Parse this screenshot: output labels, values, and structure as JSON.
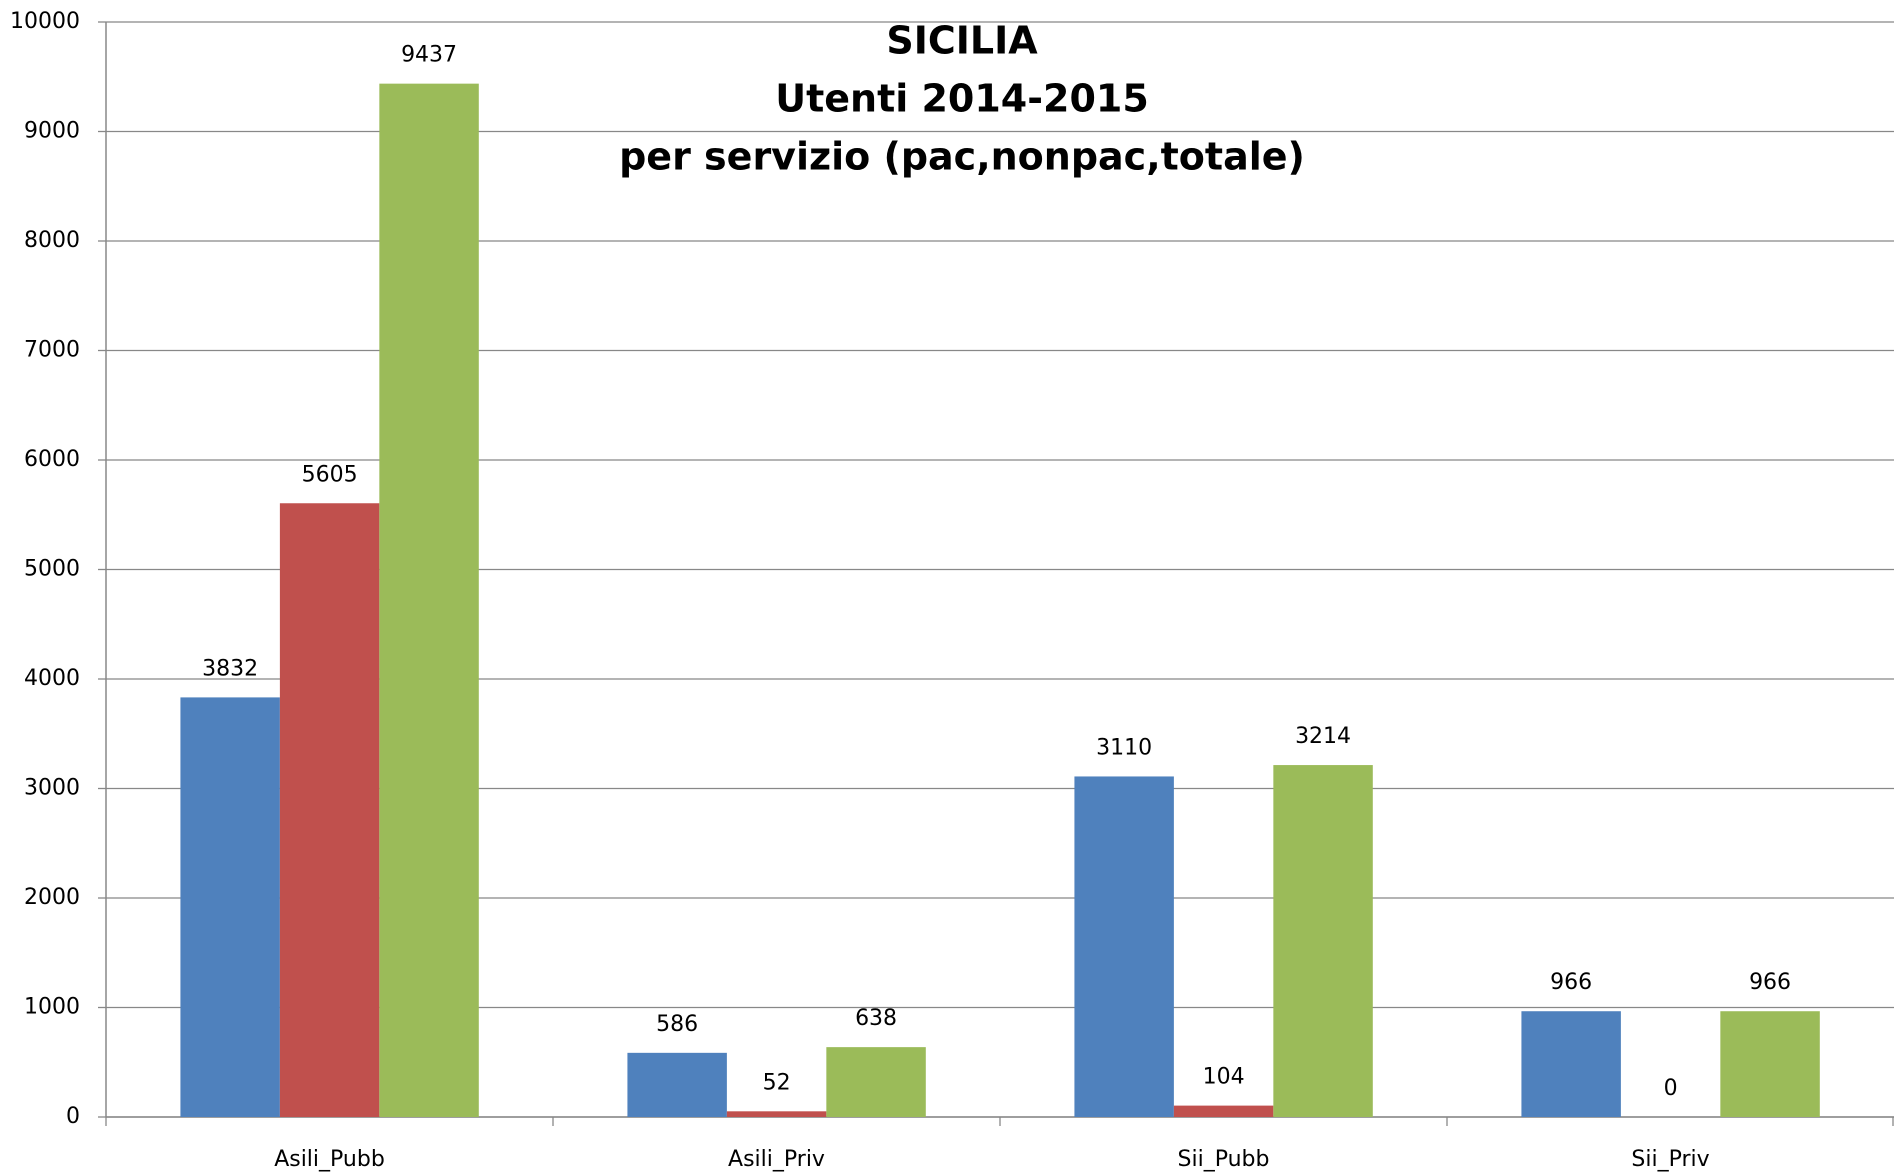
{
  "chart_data": {
    "type": "bar",
    "title": [
      "SICILIA",
      "Utenti 2014-2015",
      "per servizio (pac,nonpac,totale)"
    ],
    "categories": [
      "Asili_Pubb",
      "Asili_Priv",
      "Sii_Pubb",
      "Sii_Priv"
    ],
    "series": [
      {
        "color": "#4f81bd",
        "values": [
          3832,
          586,
          3110,
          966
        ]
      },
      {
        "color": "#c0504d",
        "values": [
          5605,
          52,
          104,
          0
        ]
      },
      {
        "color": "#9bbb59",
        "values": [
          9437,
          638,
          3214,
          966
        ]
      }
    ],
    "ylim": [
      0,
      10000
    ],
    "yticks": [
      0,
      1000,
      2000,
      3000,
      4000,
      5000,
      6000,
      7000,
      8000,
      9000,
      10000
    ],
    "grid": true
  }
}
